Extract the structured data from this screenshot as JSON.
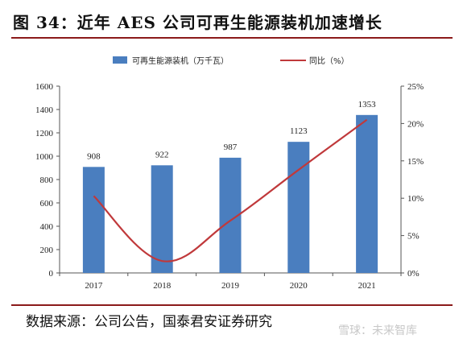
{
  "figure": {
    "title": "图 34：近年 AES 公司可再生能源装机加速增长",
    "source": "数据来源：公司公告，国泰君安证券研究",
    "watermark": "雪球：未来智库"
  },
  "colors": {
    "bar": "#4a7ebf",
    "line": "#c0393b",
    "rule": "#8b1a1a"
  },
  "chart_data": {
    "type": "bar",
    "categories": [
      "2017",
      "2018",
      "2019",
      "2020",
      "2021"
    ],
    "series": [
      {
        "name": "可再生能源装机（万千瓦）",
        "type": "bar",
        "axis": "left",
        "values": [
          908,
          922,
          987,
          1123,
          1353
        ]
      },
      {
        "name": "同比（%）",
        "type": "line",
        "axis": "right",
        "values": [
          10.3,
          1.6,
          7.0,
          13.8,
          20.5
        ]
      }
    ],
    "y_left": {
      "min": 0,
      "max": 1600,
      "ticks": [
        "0",
        "200",
        "400",
        "600",
        "800",
        "1000",
        "1200",
        "1400",
        "1600"
      ]
    },
    "y_right": {
      "min": 0,
      "max": 25,
      "ticks": [
        "0%",
        "5%",
        "10%",
        "15%",
        "20%",
        "25%"
      ]
    },
    "legend_position": "top-center",
    "grid": false
  }
}
